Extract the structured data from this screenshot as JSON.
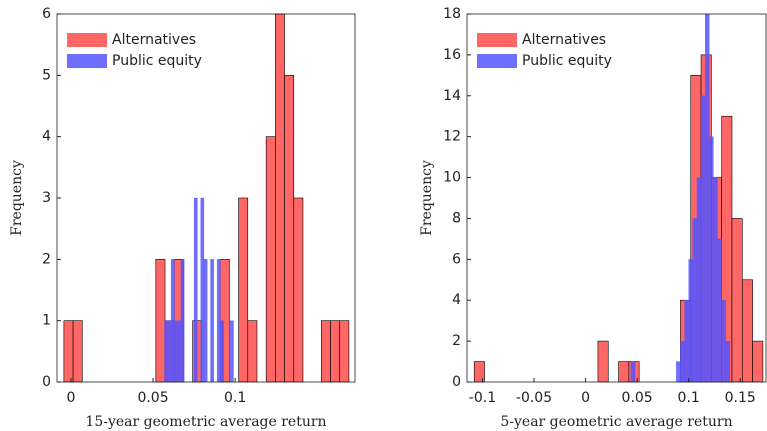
{
  "chart_data": [
    {
      "type": "histogram",
      "x_label": "15-year geometric average return",
      "y_label": "Frequency",
      "xlim": [
        -0.0085,
        0.173
      ],
      "ylim": [
        0,
        6
      ],
      "xticks": [
        0,
        0.05,
        0.1
      ],
      "yticks": [
        0,
        1,
        2,
        3,
        4,
        5,
        6
      ],
      "legend": "upper left",
      "series": [
        {
          "name": "Alternatives",
          "color": "#ff6666",
          "edge": "#000000",
          "bins": [
            -0.0043,
            0.0013,
            0.0069,
            0.0125,
            0.0181,
            0.0237,
            0.0293,
            0.0349,
            0.0405,
            0.0461,
            0.0517,
            0.0573,
            0.0629,
            0.0685,
            0.0741,
            0.0797,
            0.0853,
            0.0909,
            0.0965,
            0.1021,
            0.1077,
            0.1133,
            0.1189,
            0.1245,
            0.1301,
            0.1357,
            0.1413,
            0.1469,
            0.1525,
            0.1581,
            0.1637,
            0.1693
          ],
          "values": [
            1,
            1,
            0,
            0,
            0,
            0,
            0,
            0,
            0,
            0,
            2,
            1,
            2,
            0,
            1,
            0,
            0,
            2,
            0,
            3,
            1,
            0,
            4,
            6,
            5,
            3,
            0,
            0,
            1,
            1,
            1
          ]
        },
        {
          "name": "Public equity",
          "color": "#5555ff",
          "edge": "#5555ff",
          "bins": [
            0.057,
            0.059,
            0.061,
            0.063,
            0.065,
            0.067,
            0.069,
            0.071,
            0.073,
            0.075,
            0.077,
            0.079,
            0.081,
            0.083,
            0.085,
            0.087,
            0.089,
            0.091,
            0.093,
            0.095,
            0.097,
            0.099
          ],
          "values": [
            1,
            1,
            2,
            1,
            1,
            2,
            0,
            0,
            0,
            3,
            0,
            3,
            2,
            0,
            2,
            0,
            2,
            1,
            0,
            0,
            1
          ]
        }
      ]
    },
    {
      "type": "histogram",
      "x_label": "5-year geometric average return",
      "y_label": "Frequency",
      "xlim": [
        -0.115,
        0.175
      ],
      "ylim": [
        0,
        18
      ],
      "xticks": [
        -0.1,
        -0.05,
        0,
        0.05,
        0.1,
        0.15
      ],
      "yticks": [
        0,
        2,
        4,
        6,
        8,
        10,
        12,
        14,
        16,
        18
      ],
      "legend": "upper left",
      "series": [
        {
          "name": "Alternatives",
          "color": "#ff6666",
          "edge": "#000000",
          "bins": [
            -0.108,
            -0.098,
            -0.088,
            -0.078,
            -0.068,
            -0.058,
            -0.048,
            -0.038,
            -0.028,
            -0.018,
            -0.008,
            0.002,
            0.012,
            0.022,
            0.032,
            0.042,
            0.052,
            0.062,
            0.072,
            0.082,
            0.092,
            0.102,
            0.112,
            0.122,
            0.132,
            0.142,
            0.152,
            0.162,
            0.172
          ],
          "values": [
            1,
            0,
            0,
            0,
            0,
            0,
            0,
            0,
            0,
            0,
            0,
            0,
            2,
            0,
            1,
            1,
            0,
            0,
            0,
            0,
            4,
            15,
            16,
            10,
            13,
            8,
            5,
            2
          ]
        },
        {
          "name": "Public equity",
          "color": "#5555ff",
          "edge": "#5555ff",
          "bins": [
            0.044,
            0.048,
            0.052,
            0.056,
            0.06,
            0.064,
            0.068,
            0.072,
            0.076,
            0.08,
            0.084,
            0.088,
            0.092,
            0.096,
            0.1,
            0.104,
            0.108,
            0.112,
            0.116,
            0.12,
            0.124,
            0.128,
            0.132,
            0.136,
            0.14
          ],
          "values": [
            1,
            0,
            0,
            0,
            0,
            0,
            0,
            0,
            0,
            0,
            0,
            1,
            2,
            4,
            6,
            8,
            10,
            14,
            18,
            12,
            10,
            7,
            4,
            2
          ]
        }
      ]
    }
  ]
}
